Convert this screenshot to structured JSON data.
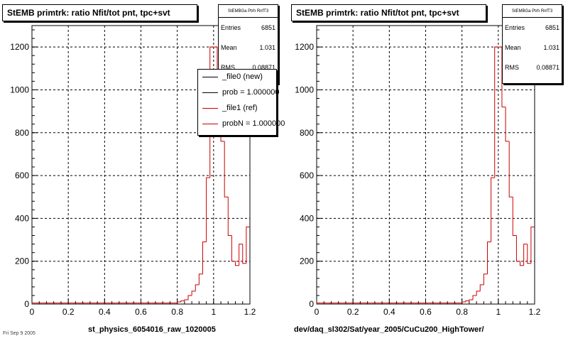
{
  "panels": [
    {
      "title": "StEMB primtrk: ratio Nfit/tot pnt, tpc+svt",
      "stats": {
        "name": "StEMBGa Ptrh RnfT3",
        "entries_label": "Entries",
        "entries": "6851",
        "mean_label": "Mean",
        "mean": "1.031",
        "rms_label": "RMS",
        "rms": "0.08871"
      },
      "legend": [
        {
          "label": "_file0 (new)",
          "color": "#000000"
        },
        {
          "label": "prob = 1.000000",
          "color": "#000000"
        },
        {
          "label": "_file1 (ref)",
          "color": "#cc0000"
        },
        {
          "label": "probN = 1.000000",
          "color": "#cc0000"
        }
      ],
      "footer": "st_physics_6054016_raw_1020005"
    },
    {
      "title": "StEMB primtrk: ratio Nfit/tot pnt, tpc+svt",
      "stats": {
        "name": "StEMBGa Ptrh RnfT3",
        "entries_label": "Entries",
        "entries": "6851",
        "mean_label": "Mean",
        "mean": "1.031",
        "rms_label": "RMS",
        "rms": "0.08871"
      },
      "footer": "dev/daq_sl302/Sat/year_2005/CuCu200_HighTower/"
    }
  ],
  "stamp": "Fri Sep 9 2005",
  "colors": {
    "histogram": "#cc0000",
    "grid": "#000000"
  },
  "chart_data": [
    {
      "type": "bar",
      "title": "StEMB primtrk: ratio Nfit/tot pnt, tpc+svt",
      "xlabel": "st_physics_6054016_raw_1020005",
      "ylabel": "",
      "xlim": [
        0,
        1.2
      ],
      "ylim": [
        0,
        1300
      ],
      "xticks": [
        "0",
        "0.2",
        "0.4",
        "0.6",
        "0.8",
        "1",
        "1.2"
      ],
      "yticks": [
        "0",
        "200",
        "400",
        "600",
        "800",
        "1000",
        "1200"
      ],
      "grid": true,
      "bin_width": 0.02,
      "bin_edges_start": 0.0,
      "values": [
        5,
        5,
        5,
        5,
        5,
        5,
        5,
        5,
        5,
        5,
        5,
        5,
        5,
        5,
        5,
        5,
        5,
        5,
        5,
        5,
        5,
        5,
        5,
        5,
        5,
        5,
        5,
        5,
        5,
        5,
        5,
        5,
        5,
        5,
        5,
        5,
        5,
        5,
        5,
        5,
        10,
        15,
        20,
        40,
        60,
        90,
        140,
        290,
        590,
        1200,
        1200,
        920,
        760,
        500,
        320,
        200,
        180,
        280,
        190,
        360
      ],
      "series": [
        {
          "name": "_file0 (new)",
          "color": "#000000"
        },
        {
          "name": "_file1 (ref)",
          "color": "#cc0000"
        }
      ]
    },
    {
      "type": "bar",
      "title": "StEMB primtrk: ratio Nfit/tot pnt, tpc+svt",
      "xlabel": "dev/daq_sl302/Sat/year_2005/CuCu200_HighTower/",
      "ylabel": "",
      "xlim": [
        0,
        1.2
      ],
      "ylim": [
        0,
        1300
      ],
      "xticks": [
        "0",
        "0.2",
        "0.4",
        "0.6",
        "0.8",
        "1",
        "1.2"
      ],
      "yticks": [
        "0",
        "200",
        "400",
        "600",
        "800",
        "1000",
        "1200"
      ],
      "grid": true,
      "bin_width": 0.02,
      "bin_edges_start": 0.0,
      "values": [
        5,
        5,
        5,
        5,
        5,
        5,
        5,
        5,
        5,
        5,
        5,
        5,
        5,
        5,
        5,
        5,
        5,
        5,
        5,
        5,
        5,
        5,
        5,
        5,
        5,
        5,
        5,
        5,
        5,
        5,
        5,
        5,
        5,
        5,
        5,
        5,
        5,
        5,
        5,
        5,
        10,
        15,
        20,
        40,
        60,
        90,
        140,
        290,
        590,
        1200,
        1200,
        920,
        760,
        500,
        320,
        200,
        180,
        280,
        190,
        360
      ]
    }
  ]
}
